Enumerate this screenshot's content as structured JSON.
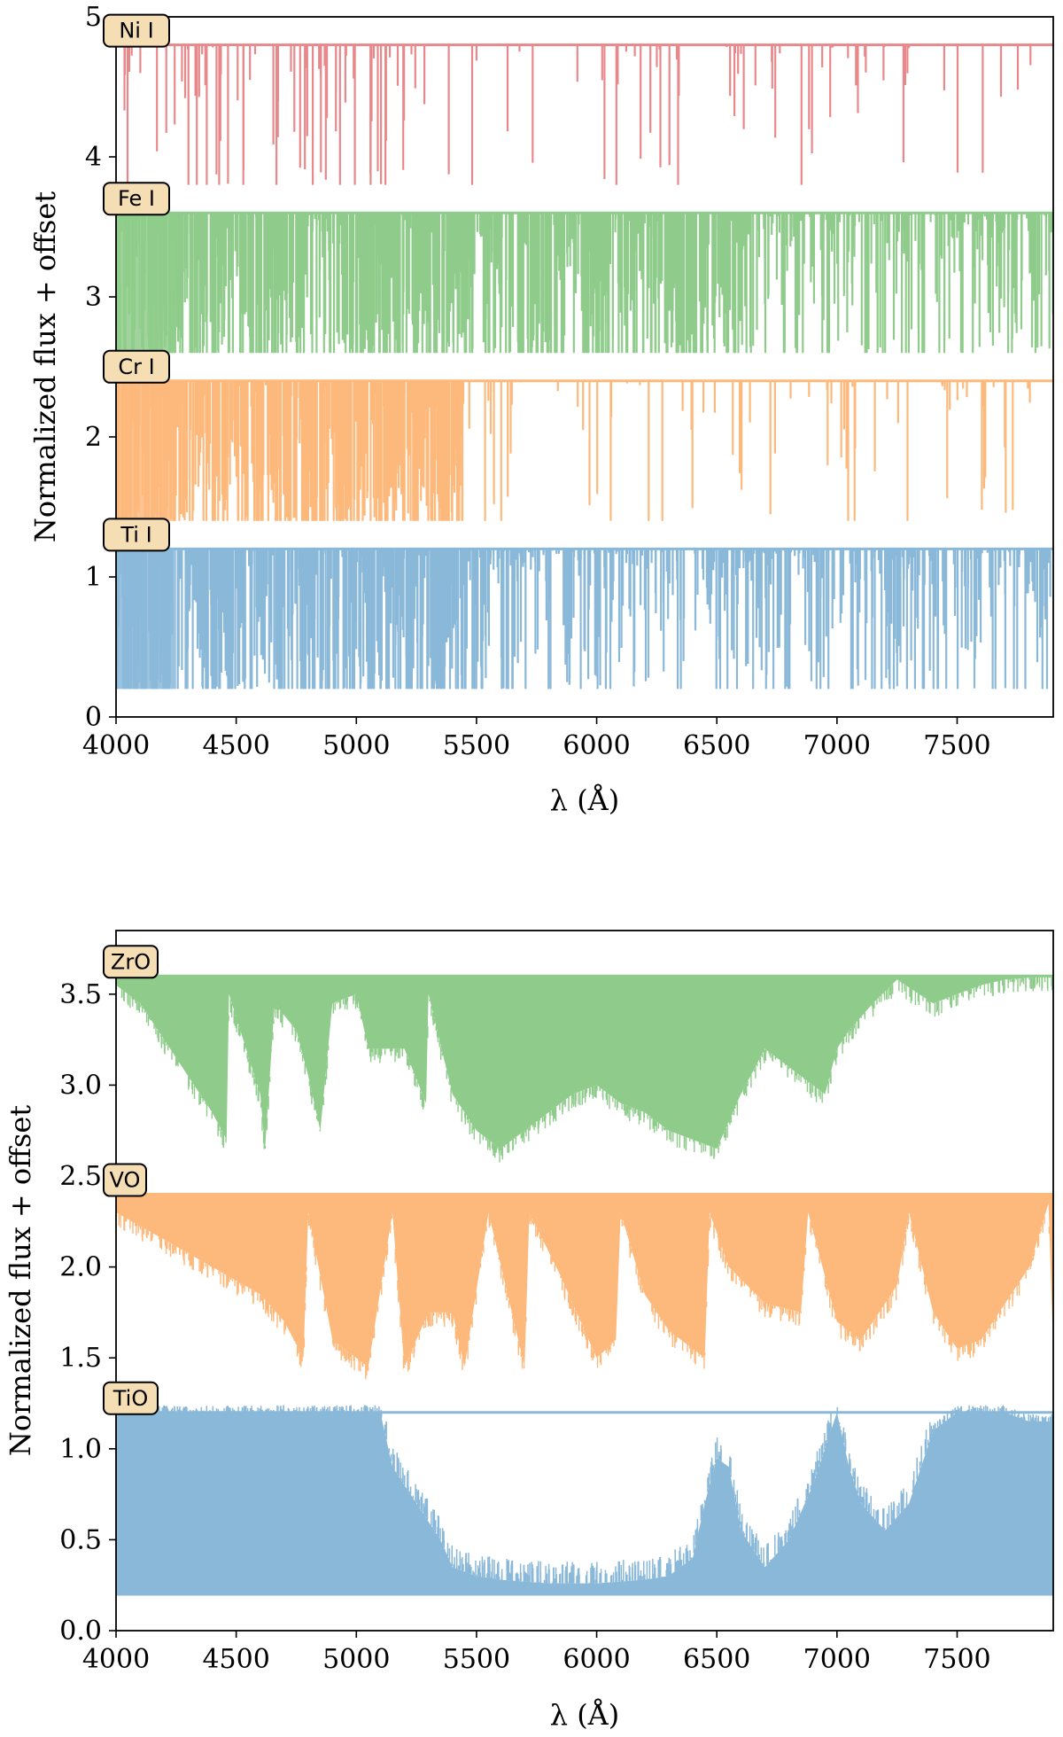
{
  "chart_data": [
    {
      "type": "line",
      "panel": "top",
      "title": "",
      "xlabel": "λ (Å)",
      "ylabel": "Normalized flux + offset",
      "xlim": [
        4000,
        7900
      ],
      "ylim": [
        0,
        5
      ],
      "xticks": [
        4000,
        4500,
        5000,
        5500,
        6000,
        6500,
        7000,
        7500
      ],
      "xtick_labels": [
        "4000",
        "4500",
        "5000",
        "5500",
        "6000",
        "6500",
        "7000",
        "7500"
      ],
      "yticks": [
        0,
        1,
        2,
        3,
        4,
        5
      ],
      "ytick_labels": [
        "0",
        "1",
        "2",
        "3",
        "4",
        "5"
      ],
      "series": [
        {
          "name": "Ni I",
          "color": "#e8888b",
          "continuum": 4.8,
          "min_flux": 3.8,
          "style": "sparse-lines",
          "dense_region": [
            4150,
            5200
          ]
        },
        {
          "name": "Fe I",
          "color": "#8fcc8b",
          "continuum": 3.6,
          "min_flux": 2.6,
          "style": "dense-lines",
          "dense_region": [
            4000,
            6600
          ]
        },
        {
          "name": "Cr I",
          "color": "#fdb97c",
          "continuum": 2.4,
          "min_flux": 1.4,
          "style": "band-lines",
          "dense_region": [
            4000,
            5450
          ]
        },
        {
          "name": "Ti I",
          "color": "#8ab8d9",
          "continuum": 1.2,
          "min_flux": 0.2,
          "style": "dense-lines",
          "dense_region": [
            4000,
            5550
          ]
        }
      ]
    },
    {
      "type": "line",
      "panel": "bottom",
      "title": "",
      "xlabel": "λ (Å)",
      "ylabel": "Normalized flux + offset",
      "xlim": [
        4000,
        7900
      ],
      "ylim": [
        0,
        3.85
      ],
      "xticks": [
        4000,
        4500,
        5000,
        5500,
        6000,
        6500,
        7000,
        7500
      ],
      "xtick_labels": [
        "4000",
        "4500",
        "5000",
        "5500",
        "6000",
        "6500",
        "7000",
        "7500"
      ],
      "yticks": [
        0,
        0.5,
        1,
        1.5,
        2,
        2.5,
        3,
        3.5
      ],
      "ytick_labels": [
        "0.0",
        "0.5",
        "1.0",
        "1.5",
        "2.0",
        "2.5",
        "3.0",
        "3.5"
      ],
      "series": [
        {
          "name": "ZrO",
          "color": "#8fcc8b",
          "continuum": 3.6,
          "envelope_x": [
            4000,
            4100,
            4200,
            4300,
            4400,
            4460,
            4470,
            4600,
            4620,
            4660,
            4750,
            4800,
            4850,
            4900,
            5000,
            5050,
            5200,
            5290,
            5300,
            5400,
            5500,
            5600,
            5700,
            5800,
            5900,
            6000,
            6100,
            6200,
            6300,
            6400,
            6500,
            6600,
            6700,
            6850,
            6950,
            7000,
            7050,
            7150,
            7250,
            7400,
            7500,
            7600,
            7700,
            7900
          ],
          "envelope_y": [
            3.55,
            3.45,
            3.25,
            3.05,
            2.85,
            2.7,
            3.5,
            2.95,
            2.65,
            3.45,
            3.3,
            3.05,
            2.75,
            3.45,
            3.5,
            3.2,
            3.2,
            2.9,
            3.5,
            2.95,
            2.75,
            2.65,
            2.75,
            2.85,
            2.95,
            3.0,
            2.9,
            2.85,
            2.75,
            2.7,
            2.65,
            2.95,
            3.2,
            3.05,
            2.95,
            3.2,
            3.3,
            3.45,
            3.58,
            3.45,
            3.5,
            3.55,
            3.58,
            3.6
          ]
        },
        {
          "name": "VO",
          "color": "#fdb97c",
          "continuum": 2.4,
          "envelope_x": [
            4000,
            4200,
            4400,
            4600,
            4700,
            4780,
            4800,
            4900,
            5000,
            5050,
            5150,
            5200,
            5300,
            5400,
            5450,
            5550,
            5700,
            5720,
            5850,
            6000,
            6080,
            6100,
            6200,
            6300,
            6450,
            6470,
            6550,
            6700,
            6850,
            6880,
            7000,
            7100,
            7250,
            7300,
            7400,
            7500,
            7600,
            7800,
            7880,
            7900
          ],
          "envelope_y": [
            2.3,
            2.15,
            2.0,
            1.85,
            1.7,
            1.5,
            2.3,
            1.6,
            1.5,
            1.45,
            2.3,
            1.45,
            1.75,
            1.75,
            1.45,
            2.3,
            1.45,
            2.3,
            1.95,
            1.5,
            1.6,
            2.3,
            1.85,
            1.65,
            1.5,
            2.3,
            2.0,
            1.8,
            1.75,
            2.3,
            1.7,
            1.6,
            1.9,
            2.3,
            1.75,
            1.55,
            1.6,
            2.0,
            2.35,
            1.55
          ]
        },
        {
          "name": "TiO",
          "color": "#8ab8d9",
          "continuum": 1.2,
          "floor": 0.2,
          "envelope_x": [
            4000,
            4500,
            5000,
            5100,
            5150,
            5250,
            5350,
            5400,
            5500,
            5600,
            5700,
            5800,
            5900,
            6000,
            6100,
            6200,
            6300,
            6400,
            6450,
            6500,
            6550,
            6600,
            6700,
            6800,
            6900,
            6950,
            7000,
            7050,
            7100,
            7200,
            7300,
            7400,
            7500,
            7600,
            7700,
            7800,
            7900
          ],
          "envelope_y": [
            1.2,
            1.2,
            1.2,
            1.2,
            0.9,
            0.7,
            0.5,
            0.35,
            0.3,
            0.28,
            0.27,
            0.26,
            0.26,
            0.26,
            0.27,
            0.28,
            0.3,
            0.4,
            0.7,
            0.95,
            0.9,
            0.55,
            0.35,
            0.5,
            0.8,
            1.0,
            1.2,
            0.9,
            0.7,
            0.55,
            0.7,
            1.1,
            1.2,
            1.2,
            1.2,
            1.15,
            1.15
          ]
        }
      ]
    }
  ]
}
